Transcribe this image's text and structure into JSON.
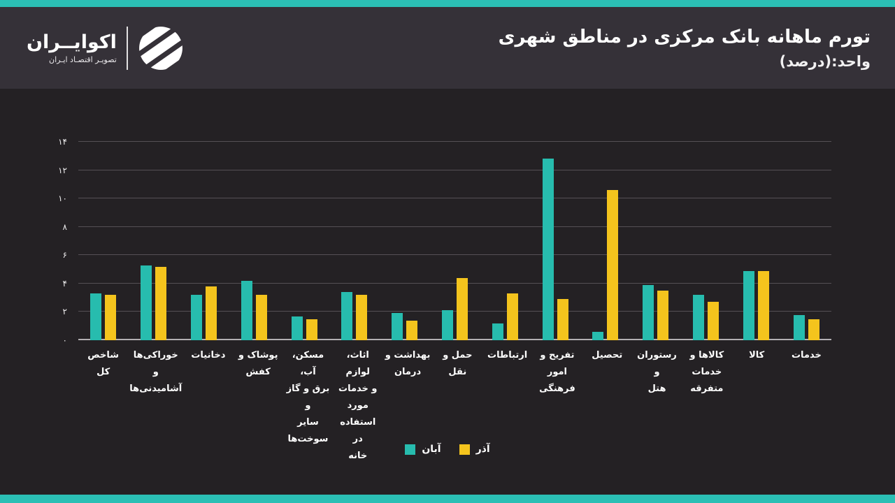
{
  "accent_color": "#2BBFB4",
  "header": {
    "title": "تورم ماهانه بانک مرکزی در مناطق شهری",
    "unit": "واحد:(درصد)",
    "logo": {
      "name": "اکوایــران",
      "tagline": "تصویـر اقتصـاد ایـران"
    }
  },
  "chart_data": {
    "type": "bar",
    "title": "تورم ماهانه بانک مرکزی در مناطق شهری",
    "ylabel": "درصد",
    "ylim": [
      0,
      14
    ],
    "grid": true,
    "legend_position": "bottom",
    "categories": [
      "شاخص کل",
      "خوراکی‌ها و\nآشامیدنی‌ها",
      "دخانیات",
      "پوشاک و\nکفش",
      "مسکن، آب،\nبرق و گاز و\nسایر\nسوخت‌ها",
      "اثاث، لوازم\nو خدمات\nمورد\nاستفاده در\nخانه",
      "بهداشت و\nدرمان",
      "حمل و نقل",
      "ارتباطات",
      "تفریح و\nامور فرهنگی",
      "تحصیل",
      "رستوران و\nهتل",
      "کالاها و\nخدمات\nمتفرقه",
      "کالا",
      "خدمات"
    ],
    "series": [
      {
        "name": "آبان",
        "color": "#27BCAE",
        "values": [
          3.3,
          5.3,
          3.2,
          4.2,
          1.7,
          3.4,
          1.9,
          2.1,
          1.2,
          12.8,
          0.6,
          3.9,
          3.2,
          4.9,
          1.8
        ]
      },
      {
        "name": "آذر",
        "color": "#F4C41D",
        "values": [
          3.2,
          5.2,
          3.8,
          3.2,
          1.5,
          3.2,
          1.4,
          4.4,
          3.3,
          2.9,
          10.6,
          3.5,
          2.7,
          4.9,
          1.5
        ]
      }
    ],
    "yticks": [
      {
        "value": 0,
        "label": "۰"
      },
      {
        "value": 2,
        "label": "۲"
      },
      {
        "value": 4,
        "label": "۴"
      },
      {
        "value": 6,
        "label": "۶"
      },
      {
        "value": 8,
        "label": "۸"
      },
      {
        "value": 10,
        "label": "۱۰"
      },
      {
        "value": 12,
        "label": "۱۲"
      },
      {
        "value": 14,
        "label": "۱۴"
      }
    ]
  }
}
